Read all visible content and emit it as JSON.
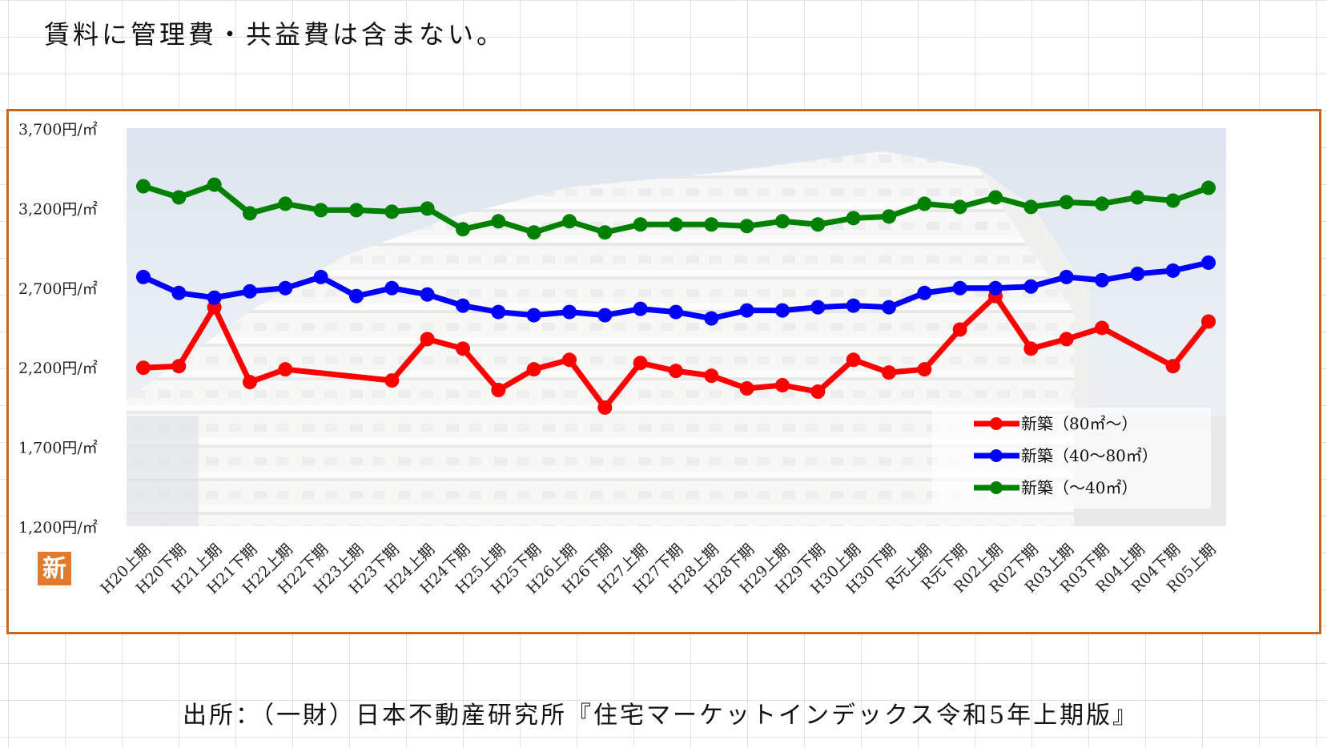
{
  "note": "賃料に管理費・共益費は含まない。",
  "source": "出所：（一財）日本不動産研究所『住宅マーケットインデックス令和5年上期版』",
  "badge": "新",
  "chart_data": {
    "type": "line",
    "ylim": [
      1200,
      3700
    ],
    "yticks": [
      3700,
      3200,
      2700,
      2200,
      1700,
      1200
    ],
    "ytick_labels": [
      "3,700円/㎡",
      "3,200円/㎡",
      "2,700円/㎡",
      "2,200円/㎡",
      "1,700円/㎡",
      "1,200円/㎡"
    ],
    "categories": [
      "H20上期",
      "H20下期",
      "H21上期",
      "H21下期",
      "H22上期",
      "H22下期",
      "H23上期",
      "H23下期",
      "H24上期",
      "H24下期",
      "H25上期",
      "H25下期",
      "H26上期",
      "H26下期",
      "H27上期",
      "H27下期",
      "H28上期",
      "H28下期",
      "H29上期",
      "H29下期",
      "H30上期",
      "H30下期",
      "R元上期",
      "R元下期",
      "R02上期",
      "R02下期",
      "R03上期",
      "R03下期",
      "R04上期",
      "R04下期",
      "R05上期"
    ],
    "legend_position": "bottom-right",
    "series": [
      {
        "name": "新築（80㎡〜）",
        "color": "#ff0000",
        "values": [
          2195,
          2205,
          2575,
          2105,
          2185,
          null,
          null,
          2115,
          2375,
          2315,
          2055,
          2185,
          2245,
          1945,
          2225,
          2175,
          2145,
          2065,
          2085,
          2045,
          2245,
          2165,
          2185,
          2435,
          2645,
          2315,
          2375,
          2445,
          null,
          2205,
          2485
        ]
      },
      {
        "name": "新築（40〜80㎡）",
        "color": "#0000ff",
        "values": [
          2765,
          2665,
          2635,
          2675,
          2695,
          2765,
          2645,
          2695,
          2655,
          2585,
          2545,
          2525,
          2545,
          2525,
          2565,
          2545,
          2505,
          2555,
          2555,
          2575,
          2585,
          2575,
          2665,
          2695,
          2695,
          2705,
          2765,
          2745,
          2785,
          2805,
          2855
        ]
      },
      {
        "name": "新築（〜40㎡）",
        "color": "#008000",
        "values": [
          3335,
          3265,
          3345,
          3165,
          3225,
          3185,
          3185,
          3175,
          3195,
          3065,
          3115,
          3045,
          3115,
          3045,
          3095,
          3095,
          3095,
          3085,
          3115,
          3095,
          3135,
          3145,
          3225,
          3205,
          3265,
          3205,
          3235,
          3225,
          3265,
          3245,
          3325
        ]
      }
    ]
  }
}
